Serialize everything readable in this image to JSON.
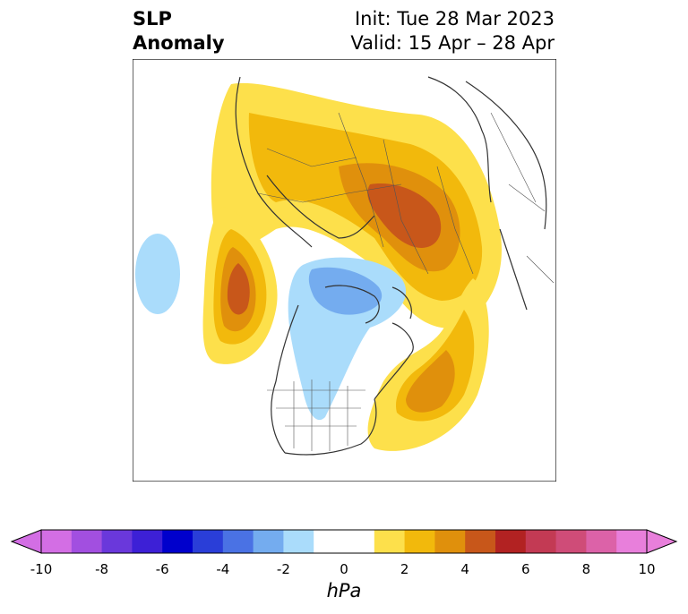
{
  "header": {
    "title_line1": "SLP",
    "title_line2": "Anomaly",
    "init": "Init: Tue 28 Mar 2023",
    "valid": "Valid: 15 Apr – 28 Apr"
  },
  "colorbar": {
    "unit": "hPa",
    "ticks": [
      "-10",
      "-8",
      "-6",
      "-4",
      "-2",
      "0",
      "2",
      "4",
      "6",
      "8",
      "10"
    ],
    "colors": [
      "#d36ee4",
      "#a24fe0",
      "#6a38db",
      "#3d20d6",
      "#0000cc",
      "#2a3ed8",
      "#4a72e4",
      "#74acef",
      "#aadcfb",
      "#ffffff",
      "#ffffff",
      "#fde04b",
      "#f2b90c",
      "#e0900c",
      "#c8571a",
      "#b22222",
      "#c33a54",
      "#cf4c78",
      "#dc62a8",
      "#e87fdb"
    ],
    "extend_low_color": "#d36ee4",
    "extend_high_color": "#e87fdb"
  }
}
